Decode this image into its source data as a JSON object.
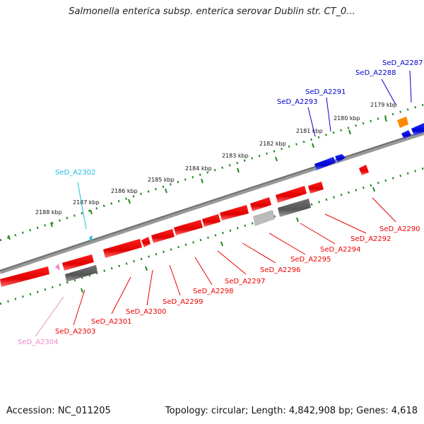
{
  "title": "Salmonella enterica subsp. enterica serovar Dublin str. CT_0...",
  "footer": {
    "accession": "Accession: NC_011205",
    "summary": "Topology: circular; Length: 4,842,908 bp; Genes: 4,618"
  },
  "scale_labels": [
    "2179 kbp",
    "2180 kbp",
    "2181 kbp",
    "2182 kbp",
    "2183 kbp",
    "2184 kbp",
    "2185 kbp",
    "2186 kbp",
    "2187 kbp",
    "2188 kbp"
  ],
  "gene_labels": {
    "SeD_A2287": "SeD_A2287",
    "SeD_A2288": "SeD_A2288",
    "SeD_A2290": "SeD_A2290",
    "SeD_A2291": "SeD_A2291",
    "SeD_A2292": "SeD_A2292",
    "SeD_A2293": "SeD_A2293",
    "SeD_A2294": "SeD_A2294",
    "SeD_A2295": "SeD_A2295",
    "SeD_A2296": "SeD_A2296",
    "SeD_A2297": "SeD_A2297",
    "SeD_A2298": "SeD_A2298",
    "SeD_A2299": "SeD_A2299",
    "SeD_A2300": "SeD_A2300",
    "SeD_A2301": "SeD_A2301",
    "SeD_A2302": "SeD_A2302",
    "SeD_A2303": "SeD_A2303",
    "SeD_A2304": "SeD_A2304"
  },
  "colors": {
    "forward_gene": "#0000dd",
    "reverse_gene": "#ee0000",
    "pseudogene": "#666666",
    "other_gene": "#ff8800",
    "trna_cyan": "#22bbdd",
    "rrna_pink": "#ee88cc",
    "backbone": "#808080",
    "tick_green": "#228822"
  }
}
